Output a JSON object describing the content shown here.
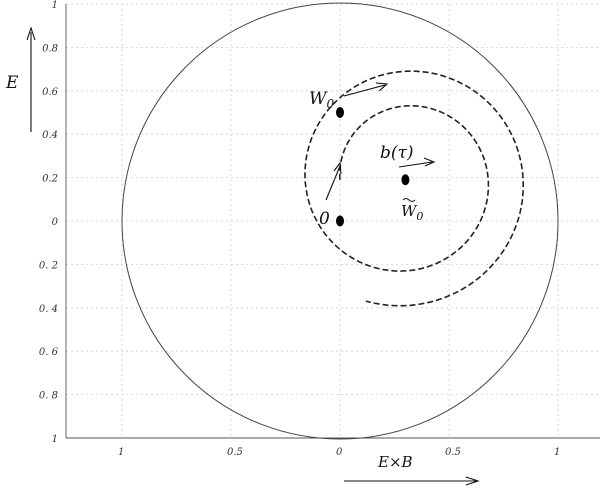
{
  "chart_data": {
    "type": "line",
    "title": "",
    "xlabel": "E×B",
    "ylabel": "E",
    "xlim": [
      -1.25,
      1.2
    ],
    "ylim": [
      -1,
      1
    ],
    "grid": true,
    "x_tick_labels": [
      {
        "value": -1,
        "label": "1"
      },
      {
        "value": -0.5,
        "label": "0.5"
      },
      {
        "value": 0,
        "label": "0"
      },
      {
        "value": 0.5,
        "label": "0.5"
      },
      {
        "value": 1,
        "label": "1"
      }
    ],
    "y_tick_labels": [
      {
        "value": 1,
        "label": "1"
      },
      {
        "value": 0.8,
        "label": "0.8"
      },
      {
        "value": 0.6,
        "label": "0.6"
      },
      {
        "value": 0.4,
        "label": "0.4"
      },
      {
        "value": 0.2,
        "label": "0.2"
      },
      {
        "value": 0,
        "label": "0"
      },
      {
        "value": -0.2,
        "label": "0. 2"
      },
      {
        "value": -0.4,
        "label": "0. 4"
      },
      {
        "value": -0.6,
        "label": "0. 6"
      },
      {
        "value": -0.8,
        "label": "0. 8"
      },
      {
        "value": -1,
        "label": "1"
      }
    ],
    "unit_circle": {
      "cx": 0,
      "cy": 0,
      "r": 1
    },
    "points": [
      {
        "label": "W₀",
        "x": 0,
        "y": 0.5
      },
      {
        "label": "0",
        "x": 0,
        "y": 0
      },
      {
        "label": "W̃₀",
        "x": 0.3,
        "y": 0.19
      }
    ],
    "trajectory": {
      "label": "b(τ)",
      "center": [
        0.3,
        0.19
      ],
      "start_angle_deg": 180,
      "start_radius": 0.3,
      "radius_growth_per_turn": 0.16,
      "turns": 1.8,
      "direction": "clockwise"
    },
    "annotations": {
      "w0": "W",
      "w0_sub": "0",
      "w0_tilde": "W",
      "w0_tilde_sub": "0",
      "origin": "0",
      "b_tau": "b(τ)"
    }
  }
}
